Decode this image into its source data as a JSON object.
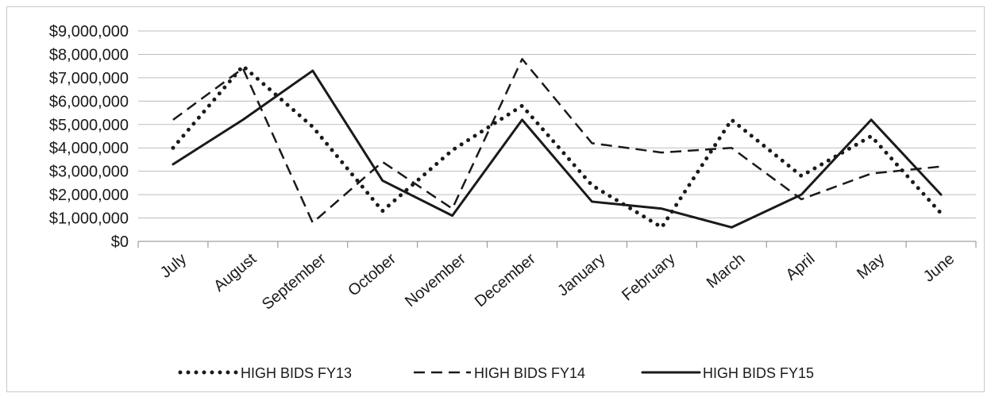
{
  "chart_data": {
    "type": "line",
    "title": "",
    "xlabel": "",
    "ylabel": "",
    "categories": [
      "July",
      "August",
      "September",
      "October",
      "November",
      "December",
      "January",
      "February",
      "March",
      "April",
      "May",
      "June"
    ],
    "ylim": [
      0,
      9000000
    ],
    "yticks": [
      0,
      1000000,
      2000000,
      3000000,
      4000000,
      5000000,
      6000000,
      7000000,
      8000000,
      9000000
    ],
    "ytick_labels": [
      "$0",
      "$1,000,000",
      "$2,000,000",
      "$3,000,000",
      "$4,000,000",
      "$5,000,000",
      "$6,000,000",
      "$7,000,000",
      "$8,000,000",
      "$9,000,000"
    ],
    "grid": true,
    "legend_position": "bottom",
    "series": [
      {
        "name": "HIGH BIDS FY13",
        "style": "dotted",
        "color": "#1a1a1a",
        "values": [
          4000000,
          7500000,
          4900000,
          1300000,
          3900000,
          5800000,
          2400000,
          600000,
          5200000,
          2800000,
          4500000,
          1200000
        ]
      },
      {
        "name": "HIGH BIDS FY14",
        "style": "dashed",
        "color": "#1a1a1a",
        "values": [
          5200000,
          7400000,
          800000,
          3400000,
          1400000,
          7800000,
          4200000,
          3800000,
          4000000,
          1800000,
          2900000,
          3200000
        ]
      },
      {
        "name": "HIGH BIDS FY15",
        "style": "solid",
        "color": "#1a1a1a",
        "values": [
          3300000,
          5200000,
          7300000,
          2600000,
          1100000,
          5200000,
          1700000,
          1400000,
          600000,
          2000000,
          5200000,
          2000000
        ]
      }
    ]
  }
}
